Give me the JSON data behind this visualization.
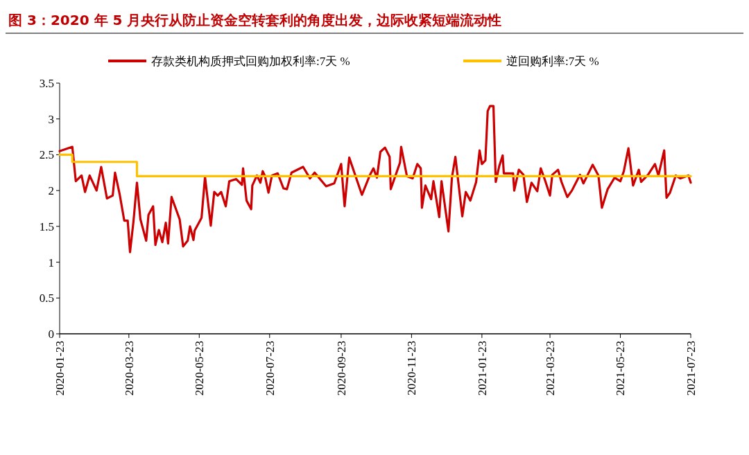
{
  "chart_data": {
    "type": "line",
    "title": "图 3：2020 年 5 月央行从防止资金空转套利的角度出发，边际收紧短端流动性",
    "legend": "top",
    "xlim": [
      "2020-01-23",
      "2021-07-23"
    ],
    "xticks": [
      "2020-01-23",
      "2020-03-23",
      "2020-05-23",
      "2020-07-23",
      "2020-09-23",
      "2020-11-23",
      "2021-01-23",
      "2021-03-23",
      "2021-05-23",
      "2021-07-23"
    ],
    "ylim": [
      0,
      3.5
    ],
    "yticks": [
      0,
      0.5,
      1,
      1.5,
      2,
      2.5,
      3,
      3.5
    ],
    "series": [
      {
        "name": "存款类机构质押式回购加权利率:7天 %",
        "color": "#cc0000",
        "x": [
          "2020-01-23",
          "2020-02-03",
          "2020-02-06",
          "2020-02-11",
          "2020-02-14",
          "2020-02-18",
          "2020-02-24",
          "2020-02-28",
          "2020-03-04",
          "2020-03-09",
          "2020-03-11",
          "2020-03-15",
          "2020-03-19",
          "2020-03-22",
          "2020-03-24",
          "2020-03-27",
          "2020-03-30",
          "2020-04-02",
          "2020-04-07",
          "2020-04-09",
          "2020-04-13",
          "2020-04-15",
          "2020-04-18",
          "2020-04-21",
          "2020-04-24",
          "2020-04-26",
          "2020-04-29",
          "2020-05-06",
          "2020-05-09",
          "2020-05-13",
          "2020-05-15",
          "2020-05-18",
          "2020-05-19",
          "2020-05-25",
          "2020-05-28",
          "2020-06-02",
          "2020-06-05",
          "2020-06-08",
          "2020-06-11",
          "2020-06-15",
          "2020-06-18",
          "2020-06-24",
          "2020-06-29",
          "2020-06-30",
          "2020-07-03",
          "2020-07-07",
          "2020-07-08",
          "2020-07-12",
          "2020-07-15",
          "2020-07-17",
          "2020-07-19",
          "2020-07-22",
          "2020-07-25",
          "2020-07-30",
          "2020-08-04",
          "2020-08-07",
          "2020-08-11",
          "2020-08-21",
          "2020-08-27",
          "2020-08-31",
          "2020-09-10",
          "2020-09-17",
          "2020-09-23",
          "2020-09-26",
          "2020-09-30",
          "2020-10-11",
          "2020-10-18",
          "2020-10-21",
          "2020-10-24",
          "2020-10-27",
          "2020-10-31",
          "2020-11-04",
          "2020-11-05",
          "2020-11-13",
          "2020-11-14",
          "2020-11-19",
          "2020-11-24",
          "2020-11-28",
          "2020-12-01",
          "2020-12-02",
          "2020-12-05",
          "2020-12-10",
          "2020-12-12",
          "2020-12-17",
          "2020-12-19",
          "2020-12-25",
          "2020-12-28",
          "2020-12-31",
          "2021-01-06",
          "2021-01-09",
          "2021-01-13",
          "2021-01-18",
          "2021-01-21",
          "2021-01-23",
          "2021-01-26",
          "2021-01-28",
          "2021-01-30",
          "2021-02-02",
          "2021-02-04",
          "2021-02-07",
          "2021-02-10",
          "2021-02-11",
          "2021-02-19",
          "2021-02-20",
          "2021-02-24",
          "2021-02-28",
          "2021-03-03",
          "2021-03-07",
          "2021-03-12",
          "2021-03-15",
          "2021-03-19",
          "2021-03-23",
          "2021-03-25",
          "2021-03-30",
          "2021-04-02",
          "2021-04-07",
          "2021-04-11",
          "2021-04-18",
          "2021-04-21",
          "2021-04-29",
          "2021-05-04",
          "2021-05-07",
          "2021-05-12",
          "2021-05-18",
          "2021-05-23",
          "2021-05-26",
          "2021-05-30",
          "2021-06-03",
          "2021-06-08",
          "2021-06-10",
          "2021-06-16",
          "2021-06-22",
          "2021-06-25",
          "2021-06-30",
          "2021-07-02",
          "2021-07-05",
          "2021-07-10",
          "2021-07-14",
          "2021-07-21",
          "2021-07-23"
        ],
        "values": [
          2.55,
          2.61,
          2.13,
          2.21,
          1.98,
          2.21,
          2.0,
          2.33,
          1.89,
          1.93,
          2.25,
          1.95,
          1.58,
          1.58,
          1.14,
          1.57,
          2.11,
          1.6,
          1.3,
          1.66,
          1.78,
          1.24,
          1.45,
          1.28,
          1.55,
          1.26,
          1.91,
          1.6,
          1.22,
          1.3,
          1.5,
          1.31,
          1.44,
          1.62,
          2.19,
          1.51,
          1.98,
          1.93,
          1.98,
          1.78,
          2.13,
          2.16,
          2.08,
          2.31,
          1.86,
          1.74,
          2.07,
          2.21,
          2.11,
          2.27,
          2.2,
          1.97,
          2.21,
          2.24,
          2.03,
          2.02,
          2.25,
          2.33,
          2.17,
          2.25,
          2.06,
          2.1,
          2.37,
          1.78,
          2.46,
          1.94,
          2.22,
          2.31,
          2.18,
          2.54,
          2.6,
          2.47,
          2.02,
          2.39,
          2.61,
          2.2,
          2.17,
          2.37,
          2.31,
          1.76,
          2.07,
          1.88,
          2.13,
          1.63,
          2.13,
          1.43,
          2.18,
          2.47,
          1.64,
          1.98,
          1.86,
          2.12,
          2.56,
          2.37,
          2.42,
          3.11,
          3.18,
          3.18,
          2.12,
          2.34,
          2.49,
          2.24,
          2.24,
          2.0,
          2.29,
          2.22,
          1.84,
          2.11,
          1.99,
          2.31,
          2.13,
          1.93,
          2.22,
          2.29,
          2.12,
          1.91,
          2.0,
          2.22,
          2.1,
          2.36,
          2.21,
          1.76,
          2.02,
          2.18,
          2.13,
          2.27,
          2.59,
          2.07,
          2.29,
          2.12,
          2.22,
          2.37,
          2.21,
          2.56,
          1.9,
          1.97,
          2.21,
          2.17,
          2.21,
          2.11
        ]
      },
      {
        "name": "逆回购利率:7天 %",
        "type": "step",
        "color": "#ffc000",
        "x": [
          "2020-01-23",
          "2020-02-03",
          "2020-03-30",
          "2021-07-23"
        ],
        "values": [
          2.5,
          2.4,
          2.2,
          2.2
        ]
      }
    ]
  }
}
